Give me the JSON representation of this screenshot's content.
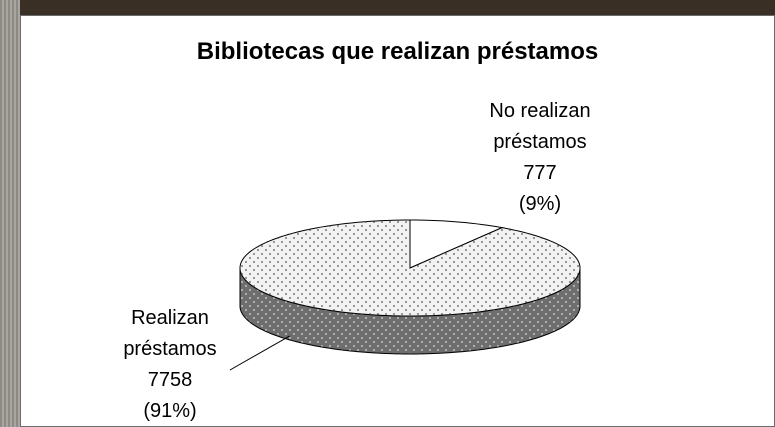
{
  "chart_data": {
    "type": "pie3d",
    "title": "Bibliotecas que realizan préstamos",
    "categories": [
      "No realizan préstamos",
      "Realizan préstamos"
    ],
    "values": [
      777,
      7758
    ],
    "percent_labels": [
      "(9%)",
      "(91%)"
    ],
    "colors": [
      "#ffffff",
      "#f2f2f2"
    ],
    "patterns": [
      "none",
      "dots"
    ]
  }
}
